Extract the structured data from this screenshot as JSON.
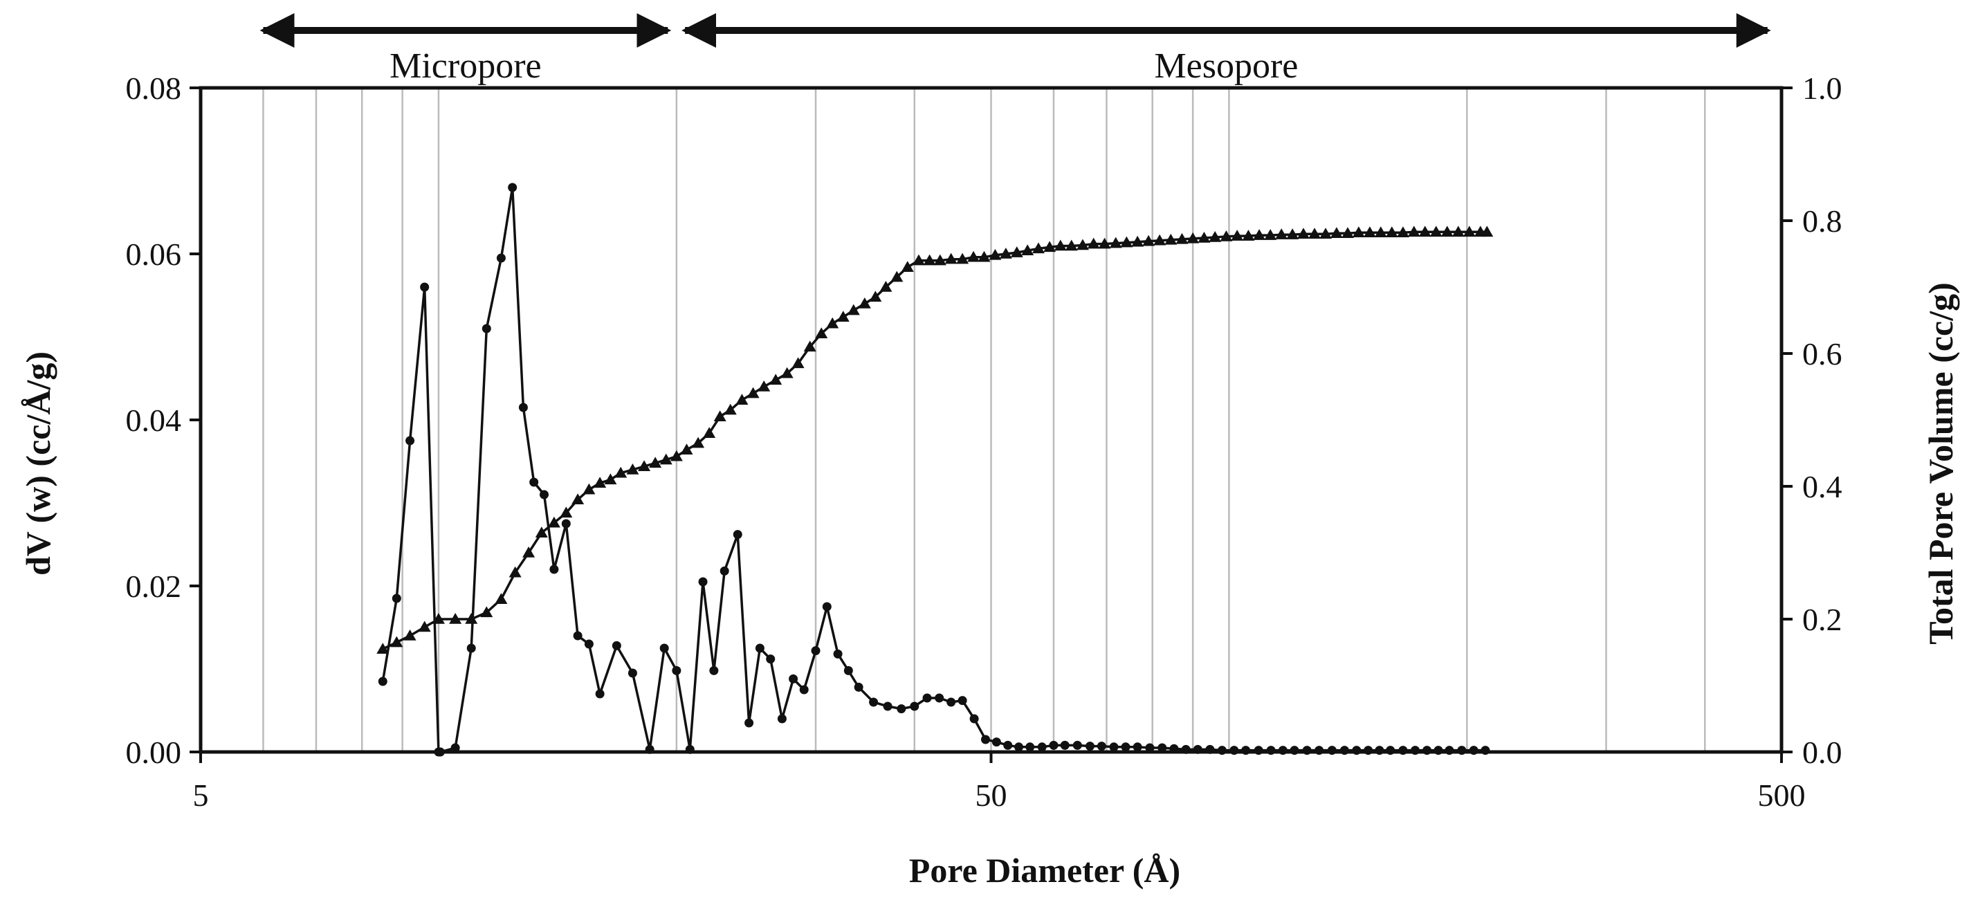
{
  "chart_data": {
    "type": "line",
    "xlabel": "Pore Diameter (Å)",
    "ylabel": "dV (w) (cc/Å/g)",
    "y2label": "Total Pore Volume (cc/g)",
    "x_scale": "log",
    "xlim": [
      5,
      500
    ],
    "ylim": [
      0,
      0.08
    ],
    "y2lim": [
      0,
      1.0
    ],
    "x_ticks": [
      5,
      50,
      500
    ],
    "x_tick_labels": [
      "5",
      "50",
      "500"
    ],
    "y_ticks": [
      0,
      0.02,
      0.04,
      0.06,
      0.08
    ],
    "y_tick_labels": [
      "0.00",
      "0.02",
      "0.04",
      "0.06",
      "0.08"
    ],
    "y2_ticks": [
      0,
      0.2,
      0.4,
      0.6,
      0.8,
      1.0
    ],
    "y2_tick_labels": [
      "0.0",
      "0.2",
      "0.4",
      "0.6",
      "0.8",
      "1.0"
    ],
    "grid": "vertical",
    "regions": [
      {
        "label": "Micropore",
        "from": 6.0,
        "to": 19.5
      },
      {
        "label": "Mesopore",
        "from": 20.5,
        "to": 480
      }
    ],
    "colors": {
      "series": "#111111",
      "grid": "#bbbbbb",
      "axis": "#111111"
    },
    "series": [
      {
        "marker": "circle",
        "axis": "left",
        "x": [
          8.5,
          8.85,
          9.2,
          9.6,
          10.0,
          10.05,
          10.5,
          11.0,
          11.5,
          12.0,
          12.4,
          12.8,
          13.2,
          13.6,
          14.0,
          14.5,
          15.0,
          15.5,
          16.0,
          16.8,
          17.6,
          18.5,
          19.3,
          20.0,
          20.8,
          21.6,
          22.3,
          23.0,
          23.9,
          24.7,
          25.5,
          26.3,
          27.2,
          28.1,
          29.0,
          30.0,
          31.0,
          32.0,
          33.0,
          34.0,
          35.5,
          37.0,
          38.5,
          40.0,
          41.5,
          43.0,
          44.5,
          46.0,
          47.6,
          49.2,
          50.8,
          52.5,
          54.2,
          56.0,
          58.0,
          60.0,
          62.0,
          64.3,
          66.7,
          69.0,
          71.5,
          74.0,
          76.6,
          79.4,
          82.3,
          85.2,
          88.2,
          91.3,
          94.6,
          98.0,
          101.5,
          105.0,
          109.0,
          113.0,
          117.0,
          121.0,
          125.5,
          130.0,
          135.0,
          140.0,
          145.0,
          150.0,
          155.0,
          160.0,
          166.0,
          172.0,
          178.0,
          184.0,
          190.0,
          197.0,
          204.0,
          211.0
        ],
        "values": [
          0.0085,
          0.0185,
          0.0375,
          0.056,
          0.0,
          0.0,
          0.0005,
          0.0125,
          0.051,
          0.0595,
          0.068,
          0.0415,
          0.0325,
          0.031,
          0.022,
          0.0275,
          0.014,
          0.013,
          0.007,
          0.0128,
          0.0095,
          0.0003,
          0.0125,
          0.0098,
          0.0003,
          0.0205,
          0.0098,
          0.0218,
          0.0262,
          0.0035,
          0.0125,
          0.0112,
          0.004,
          0.0088,
          0.0075,
          0.0122,
          0.0175,
          0.0118,
          0.0098,
          0.0078,
          0.006,
          0.0055,
          0.0052,
          0.0055,
          0.0065,
          0.0065,
          0.006,
          0.0062,
          0.004,
          0.0015,
          0.0012,
          0.0008,
          0.0006,
          0.0006,
          0.0006,
          0.0008,
          0.0008,
          0.0008,
          0.0007,
          0.0007,
          0.0006,
          0.0006,
          0.0006,
          0.0005,
          0.0005,
          0.0004,
          0.0003,
          0.0003,
          0.0003,
          0.0002,
          0.0002,
          0.0002,
          0.0002,
          0.0002,
          0.0002,
          0.0002,
          0.0002,
          0.0002,
          0.0002,
          0.0002,
          0.0002,
          0.0002,
          0.0002,
          0.0002,
          0.0002,
          0.0002,
          0.0002,
          0.0002,
          0.0002,
          0.0002,
          0.0002,
          0.0002
        ]
      },
      {
        "marker": "triangle",
        "axis": "right",
        "x": [
          8.5,
          8.85,
          9.2,
          9.6,
          10.0,
          10.5,
          11.0,
          11.5,
          12.0,
          12.5,
          13.0,
          13.5,
          14.0,
          14.5,
          15.0,
          15.5,
          16.0,
          16.5,
          17.0,
          17.6,
          18.2,
          18.8,
          19.4,
          20.0,
          20.6,
          21.3,
          22.0,
          22.7,
          23.4,
          24.2,
          25.0,
          25.8,
          26.7,
          27.6,
          28.5,
          29.5,
          30.5,
          31.5,
          32.5,
          33.5,
          34.6,
          35.7,
          36.8,
          38.0,
          39.2,
          40.5,
          41.8,
          43.1,
          44.5,
          46.0,
          47.5,
          49.0,
          50.6,
          52.2,
          53.9,
          55.6,
          57.4,
          59.3,
          61.2,
          63.2,
          65.3,
          67.4,
          69.6,
          71.9,
          74.2,
          76.6,
          79.1,
          81.7,
          84.4,
          87.2,
          90.0,
          93.0,
          96.0,
          99.2,
          102.4,
          105.8,
          109.2,
          112.8,
          116.5,
          120.3,
          124.2,
          128.3,
          132.5,
          136.8,
          141.3,
          145.9,
          150.7,
          155.6,
          160.7,
          166.0,
          171.4,
          177.0,
          182.8,
          188.8,
          195.0,
          201.4,
          208.0,
          212.0
        ],
        "values": [
          0.155,
          0.165,
          0.175,
          0.188,
          0.2,
          0.2,
          0.2,
          0.21,
          0.23,
          0.27,
          0.3,
          0.33,
          0.345,
          0.36,
          0.38,
          0.395,
          0.405,
          0.41,
          0.42,
          0.425,
          0.43,
          0.435,
          0.44,
          0.445,
          0.455,
          0.465,
          0.48,
          0.505,
          0.515,
          0.53,
          0.54,
          0.55,
          0.56,
          0.57,
          0.585,
          0.61,
          0.63,
          0.645,
          0.655,
          0.665,
          0.675,
          0.685,
          0.7,
          0.715,
          0.73,
          0.74,
          0.74,
          0.74,
          0.742,
          0.742,
          0.745,
          0.745,
          0.748,
          0.75,
          0.752,
          0.755,
          0.758,
          0.76,
          0.762,
          0.762,
          0.763,
          0.765,
          0.765,
          0.766,
          0.767,
          0.768,
          0.769,
          0.77,
          0.771,
          0.772,
          0.773,
          0.774,
          0.775,
          0.776,
          0.777,
          0.777,
          0.778,
          0.778,
          0.779,
          0.779,
          0.78,
          0.78,
          0.78,
          0.781,
          0.781,
          0.782,
          0.782,
          0.782,
          0.782,
          0.782,
          0.783,
          0.783,
          0.783,
          0.783,
          0.783,
          0.783,
          0.783,
          0.783
        ]
      }
    ]
  }
}
